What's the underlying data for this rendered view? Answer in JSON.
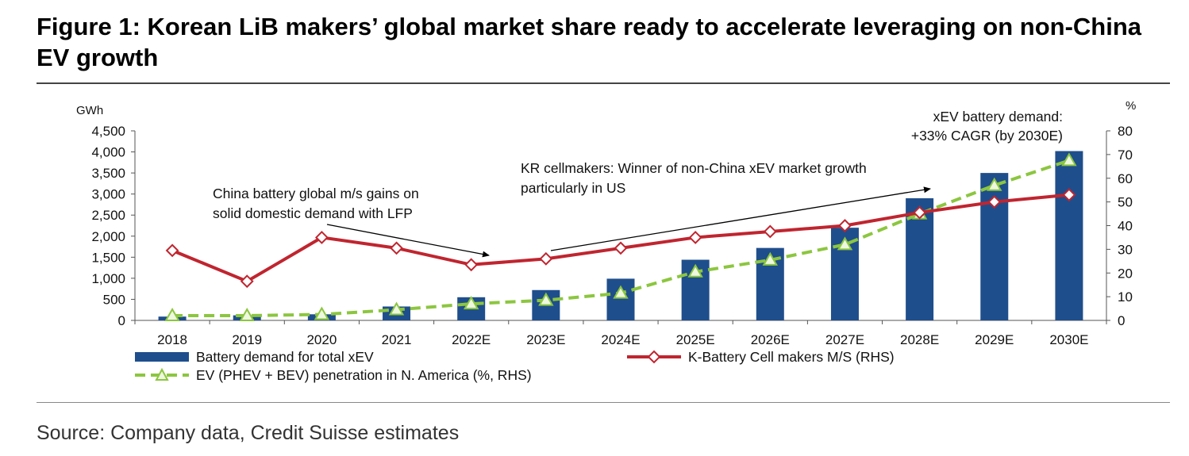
{
  "figure": {
    "title": "Figure 1: Korean LiB makers’ global market share ready to accelerate leveraging on non-China EV growth",
    "source": "Source: Company data, Credit Suisse estimates"
  },
  "chart_data": {
    "type": "bar",
    "categories": [
      "2018",
      "2019",
      "2020",
      "2021",
      "2022E",
      "2023E",
      "2024E",
      "2025E",
      "2026E",
      "2027E",
      "2028E",
      "2029E",
      "2030E"
    ],
    "left_axis": {
      "unit": "GWh",
      "min": 0,
      "max": 4500,
      "step": 500,
      "ticks": [
        "0",
        "500",
        "1,000",
        "1,500",
        "2,000",
        "2,500",
        "3,000",
        "3,500",
        "4,000",
        "4,500"
      ]
    },
    "right_axis": {
      "unit": "%",
      "min": 0,
      "max": 80,
      "step": 10,
      "ticks": [
        "0",
        "10",
        "20",
        "30",
        "40",
        "50",
        "60",
        "70",
        "80"
      ]
    },
    "series": [
      {
        "name": "Battery demand for total xEV",
        "type": "bar",
        "axis": "left",
        "color": "#1f4e8c",
        "values": [
          90,
          120,
          145,
          330,
          550,
          720,
          990,
          1440,
          1720,
          2200,
          2900,
          3500,
          4020
        ]
      },
      {
        "name": "K-Battery Cell makers M/S (RHS)",
        "type": "line",
        "axis": "right",
        "color": "#c0252f",
        "marker": "diamond",
        "values": [
          29.5,
          16.5,
          35,
          30.5,
          23.5,
          26,
          30.5,
          35,
          37.5,
          40,
          45.5,
          50,
          53
        ]
      },
      {
        "name": "EV (PHEV + BEV) penetration in N. America (%, RHS)",
        "type": "line",
        "axis": "right",
        "color": "#8cc63f",
        "marker": "triangle",
        "dashed": true,
        "values": [
          2,
          2,
          2.5,
          4.5,
          7,
          8.5,
          11.5,
          20.5,
          25.5,
          32,
          45,
          57,
          67.5
        ]
      }
    ],
    "annotations": [
      {
        "lines": [
          "China battery global m/s gains on",
          "solid domestic demand with LFP"
        ]
      },
      {
        "lines": [
          "KR cellmakers: Winner of non-China xEV market growth",
          "particularly in US"
        ]
      },
      {
        "lines": [
          "xEV battery demand:",
          "+33% CAGR (by 2030E)"
        ]
      }
    ],
    "grid": false,
    "legend": "bottom"
  }
}
